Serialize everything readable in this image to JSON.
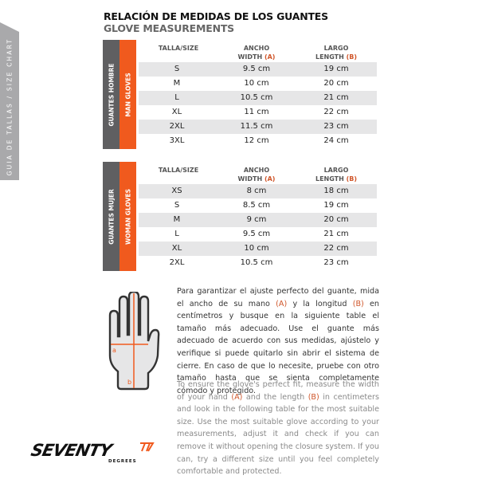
{
  "side_tab": "GUIA DE TALLAS / SIZE CHART",
  "title_es": "RELACIÓN DE MEDIDAS DE LOS GUANTES",
  "title_en": "GLOVE MEASUREMENTS",
  "headers": {
    "size": "TALLA/SIZE",
    "width_1": "ANCHO",
    "width_2": "WIDTH",
    "width_mark": "(A)",
    "length_1": "LARGO",
    "length_2": "LENGTH",
    "length_mark": "(B)"
  },
  "men": {
    "label_es": "GUANTES HOMBRE",
    "label_en": "MAN GLOVES",
    "rows": [
      [
        "S",
        "9.5 cm",
        "19 cm"
      ],
      [
        "M",
        "10 cm",
        "20 cm"
      ],
      [
        "L",
        "10.5 cm",
        "21 cm"
      ],
      [
        "XL",
        "11 cm",
        "22 cm"
      ],
      [
        "2XL",
        "11.5 cm",
        "23 cm"
      ],
      [
        "3XL",
        "12 cm",
        "24 cm"
      ]
    ]
  },
  "women": {
    "label_es": "GUANTES MUJER",
    "label_en": "WOMAN GLOVES",
    "rows": [
      [
        "XS",
        "8 cm",
        "18 cm"
      ],
      [
        "S",
        "8.5 cm",
        "19 cm"
      ],
      [
        "M",
        "9 cm",
        "20 cm"
      ],
      [
        "L",
        "9.5 cm",
        "21 cm"
      ],
      [
        "XL",
        "10 cm",
        "22 cm"
      ],
      [
        "2XL",
        "10.5 cm",
        "23 cm"
      ]
    ]
  },
  "hand": {
    "a": "a",
    "b": "b"
  },
  "text_es": [
    "Para garantizar el ajuste perfecto del guante, mida el ancho de su mano ",
    "(A)",
    " y la longitud ",
    "(B)",
    " en centímetros y busque en la siguiente table el tamaño más adecuado. Use el guante más adecuado de acuerdo con sus medidas, ajústelo y verifique si puede quitarlo sin abrir el sistema de cierre. En caso de que lo necesite, pruebe con otro tamaño hasta que se sienta completamente cómodo y protegido."
  ],
  "text_en": [
    "To ensure the glove's perfect fit, measure the width of your hand ",
    "(A)",
    " and the length ",
    "(B)",
    " in centimeters and look in the following table for the most suitable size. Use the most suitable glove according to your measurements, adjust it and check if you can remove it without opening the closure system. If you can, try a different size until you feel completely comfortable and protected."
  ],
  "logo": "SEVENTY DEGREES",
  "colors": {
    "orange": "#f05a1e",
    "dark_grey": "#5f5f61",
    "stripe": "#e6e6e7"
  }
}
